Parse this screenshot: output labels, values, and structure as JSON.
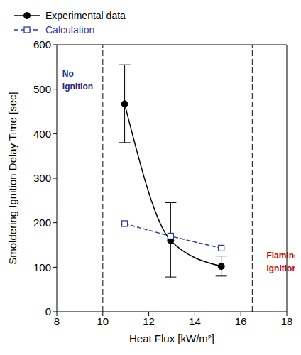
{
  "chart_data": {
    "type": "line",
    "xlabel": "Heat Flux [kW/m²]",
    "ylabel": "Smoldering Ignition Delay Time [sec]",
    "xlim": [
      8,
      18
    ],
    "xticks": [
      8,
      10,
      12,
      14,
      16,
      18
    ],
    "ylim": [
      0,
      600
    ],
    "yticks": [
      0,
      100,
      200,
      300,
      400,
      500,
      600
    ],
    "grid": false,
    "legend": "upper right",
    "series": [
      {
        "name": "Experimental data",
        "color": "#000000",
        "marker": "circle",
        "line_style": "solid",
        "x": [
          10.95,
          12.95,
          15.15
        ],
        "values": [
          467,
          160,
          102
        ],
        "error_minus": [
          87,
          82,
          22
        ],
        "error_plus": [
          88,
          85,
          23
        ]
      },
      {
        "name": "Calculation",
        "color": "#2d3ba8",
        "marker": "square",
        "line_style": "dashed",
        "x": [
          10.95,
          12.95,
          15.15
        ],
        "values": [
          198,
          170,
          143
        ]
      }
    ],
    "reference_lines": [
      {
        "x": 10,
        "label": "No Ignition",
        "color": "#1c2a8c"
      },
      {
        "x": 16.5,
        "label": "Flaming Ignition",
        "color": "#cc0000"
      }
    ]
  }
}
